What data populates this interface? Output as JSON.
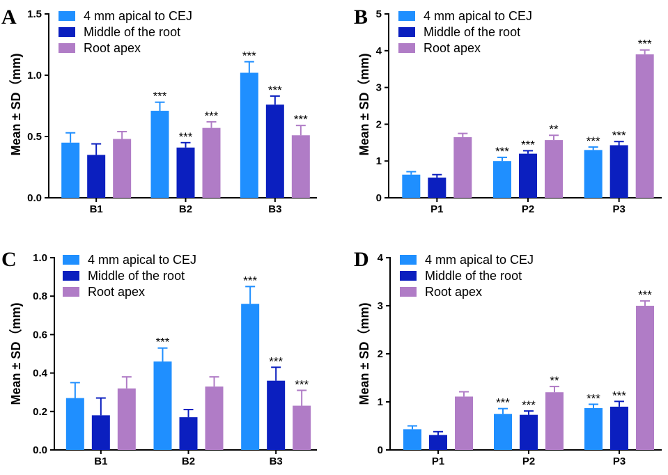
{
  "colors": {
    "series1": "#1f8fff",
    "series2": "#0b1fbf",
    "series3": "#b07cc6"
  },
  "chart_data": [
    {
      "type": "bar",
      "panel": "A",
      "categories": [
        "B1",
        "B2",
        "B3"
      ],
      "ylabel": "Mean ± SD（mm)",
      "ylim": [
        0,
        1.5
      ],
      "yticks": [
        0.0,
        0.5,
        1.0,
        1.5
      ],
      "ytick_labels": [
        "0.0",
        "0.5",
        "1.0",
        "1.5"
      ],
      "legend_position": "top-left",
      "series": [
        {
          "name": "4 mm apical to CEJ",
          "values": [
            0.45,
            0.71,
            1.02
          ],
          "errors": [
            0.08,
            0.07,
            0.09
          ],
          "sig": [
            "",
            "***",
            "***"
          ]
        },
        {
          "name": "Middle of the root",
          "values": [
            0.35,
            0.41,
            0.76
          ],
          "errors": [
            0.09,
            0.04,
            0.07
          ],
          "sig": [
            "",
            "***",
            "***"
          ]
        },
        {
          "name": "Root apex",
          "values": [
            0.48,
            0.57,
            0.51
          ],
          "errors": [
            0.06,
            0.05,
            0.08
          ],
          "sig": [
            "",
            "***",
            "***"
          ]
        }
      ]
    },
    {
      "type": "bar",
      "panel": "B",
      "categories": [
        "P1",
        "P2",
        "P3"
      ],
      "ylabel": "Mean ± SD（mm)",
      "ylim": [
        0,
        5
      ],
      "yticks": [
        0,
        1,
        2,
        3,
        4,
        5
      ],
      "ytick_labels": [
        "0",
        "1",
        "2",
        "3",
        "4",
        "5"
      ],
      "legend_position": "top-left",
      "series": [
        {
          "name": "4 mm apical to CEJ",
          "values": [
            0.63,
            1.0,
            1.3
          ],
          "errors": [
            0.08,
            0.1,
            0.08
          ],
          "sig": [
            "",
            "***",
            "***"
          ]
        },
        {
          "name": "Middle of the root",
          "values": [
            0.55,
            1.2,
            1.43
          ],
          "errors": [
            0.08,
            0.08,
            0.1
          ],
          "sig": [
            "",
            "***",
            "***"
          ]
        },
        {
          "name": "Root apex",
          "values": [
            1.65,
            1.57,
            3.9
          ],
          "errors": [
            0.1,
            0.13,
            0.12
          ],
          "sig": [
            "",
            "**",
            "***"
          ]
        }
      ]
    },
    {
      "type": "bar",
      "panel": "C",
      "categories": [
        "B1",
        "B2",
        "B3"
      ],
      "ylabel": "Mean ± SD（mm)",
      "ylim": [
        0,
        1.0
      ],
      "yticks": [
        0.0,
        0.2,
        0.4,
        0.6,
        0.8,
        1.0
      ],
      "ytick_labels": [
        "0.0",
        "0.2",
        "0.4",
        "0.6",
        "0.8",
        "1.0"
      ],
      "legend_position": "top-left",
      "series": [
        {
          "name": "4 mm apical to CEJ",
          "values": [
            0.27,
            0.46,
            0.76
          ],
          "errors": [
            0.08,
            0.07,
            0.09
          ],
          "sig": [
            "",
            "***",
            "***"
          ]
        },
        {
          "name": "Middle of the root",
          "values": [
            0.18,
            0.17,
            0.36
          ],
          "errors": [
            0.09,
            0.04,
            0.07
          ],
          "sig": [
            "",
            "",
            "***"
          ]
        },
        {
          "name": "Root apex",
          "values": [
            0.32,
            0.33,
            0.23
          ],
          "errors": [
            0.06,
            0.05,
            0.08
          ],
          "sig": [
            "",
            "",
            "***"
          ]
        }
      ]
    },
    {
      "type": "bar",
      "panel": "D",
      "categories": [
        "P1",
        "P2",
        "P3"
      ],
      "ylabel": "Mean ± SD（mm)",
      "ylim": [
        0,
        4
      ],
      "yticks": [
        0,
        1,
        2,
        3,
        4
      ],
      "ytick_labels": [
        "0",
        "1",
        "2",
        "3",
        "4"
      ],
      "legend_position": "top-left",
      "series": [
        {
          "name": "4 mm apical to CEJ",
          "values": [
            0.43,
            0.75,
            0.87
          ],
          "errors": [
            0.07,
            0.11,
            0.08
          ],
          "sig": [
            "",
            "***",
            "***"
          ]
        },
        {
          "name": "Middle of the root",
          "values": [
            0.31,
            0.73,
            0.9
          ],
          "errors": [
            0.07,
            0.08,
            0.11
          ],
          "sig": [
            "",
            "***",
            "***"
          ]
        },
        {
          "name": "Root apex",
          "values": [
            1.11,
            1.2,
            3.0
          ],
          "errors": [
            0.1,
            0.12,
            0.1
          ],
          "sig": [
            "",
            "**",
            "***"
          ]
        }
      ]
    }
  ]
}
